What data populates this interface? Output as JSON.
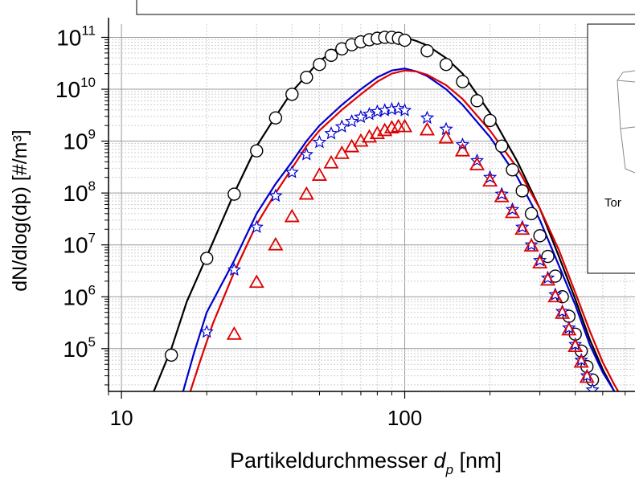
{
  "chart_data": {
    "type": "line",
    "xlabel_main": "Partikeldurchmesser ",
    "xlabel_var": "d",
    "xlabel_sub": "p",
    "xlabel_unit": " [nm]",
    "ylabel": "dN/dlog(dp) [#/m³]",
    "x_scale": "log",
    "y_scale": "log",
    "xlim": [
      9,
      650
    ],
    "ylim": [
      15000,
      180000000000
    ],
    "grid": true,
    "x_ticks": [
      {
        "value": 10,
        "label": "10"
      },
      {
        "value": 100,
        "label": "100"
      }
    ],
    "y_ticks": [
      {
        "value": 100000,
        "base": "10",
        "exp": "5"
      },
      {
        "value": 1000000,
        "base": "10",
        "exp": "6"
      },
      {
        "value": 10000000,
        "base": "10",
        "exp": "7"
      },
      {
        "value": 100000000,
        "base": "10",
        "exp": "8"
      },
      {
        "value": 1000000000,
        "base": "10",
        "exp": "9"
      },
      {
        "value": 10000000000,
        "base": "10",
        "exp": "10"
      },
      {
        "value": 100000000000,
        "base": "10",
        "exp": "11"
      }
    ],
    "inset_text": "Tor",
    "curves": [
      {
        "color": "#000000",
        "x": [
          13,
          15,
          17,
          20,
          25,
          30,
          35,
          40,
          50,
          60,
          70,
          80,
          90,
          100,
          110,
          120,
          140,
          160,
          200,
          250,
          300,
          350,
          400,
          450,
          500,
          540,
          570
        ],
        "y": [
          15000,
          100000,
          800000,
          6000000,
          100000000,
          800000000,
          3000000000,
          9000000000,
          35000000000,
          70000000000,
          95000000000,
          105000000000,
          108000000000,
          100000000000,
          85000000000,
          70000000000,
          40000000000,
          20000000000,
          3500000000,
          400000000,
          50000000,
          6000000,
          900000,
          150000,
          40000,
          18000,
          10000
        ]
      },
      {
        "color": "#0000cc",
        "x": [
          16.5,
          18,
          20,
          25,
          30,
          35,
          40,
          45,
          50,
          60,
          70,
          80,
          90,
          100,
          110,
          120,
          140,
          160,
          200,
          250,
          300,
          350,
          400,
          450,
          500,
          550,
          590
        ],
        "y": [
          15000,
          80000,
          500000,
          5000000,
          40000000,
          150000000,
          400000000,
          1000000000,
          2000000000,
          5000000000,
          10000000000,
          17000000000,
          23000000000,
          25000000000,
          22000000000,
          18000000000,
          10000000000,
          5000000000,
          1200000000,
          200000000,
          30000000,
          4000000,
          700000,
          120000,
          35000,
          15000,
          8000
        ]
      },
      {
        "color": "#dd0000",
        "x": [
          17.5,
          19,
          21,
          25,
          30,
          35,
          40,
          45,
          50,
          60,
          70,
          80,
          90,
          100,
          110,
          120,
          140,
          160,
          200,
          250,
          300,
          350,
          400,
          450,
          500,
          550,
          600
        ],
        "y": [
          15000,
          60000,
          300000,
          3000000,
          25000000,
          100000000,
          300000000,
          800000000,
          1600000000,
          4000000000,
          8000000000,
          14000000000,
          20000000000,
          23000000000,
          22000000000,
          19000000000,
          12000000000,
          6500000000,
          1600000000,
          300000000,
          50000000,
          8000000,
          1200000,
          220000,
          55000,
          20000,
          9000
        ]
      }
    ],
    "markers": [
      {
        "shape": "circle",
        "color": "#000000",
        "points": [
          [
            15,
            75000
          ],
          [
            20,
            5500000
          ],
          [
            25,
            95000000
          ],
          [
            30,
            650000000
          ],
          [
            35,
            2800000000
          ],
          [
            40,
            8000000000
          ],
          [
            45,
            17000000000
          ],
          [
            50,
            30000000000
          ],
          [
            55,
            45000000000
          ],
          [
            60,
            60000000000
          ],
          [
            65,
            72000000000
          ],
          [
            70,
            82000000000
          ],
          [
            75,
            90000000000
          ],
          [
            80,
            96000000000
          ],
          [
            85,
            100000000000
          ],
          [
            90,
            100000000000
          ],
          [
            95,
            96000000000
          ],
          [
            100,
            88000000000
          ],
          [
            120,
            55000000000
          ],
          [
            140,
            30000000000
          ],
          [
            160,
            14000000000
          ],
          [
            180,
            6000000000
          ],
          [
            200,
            2500000000
          ],
          [
            220,
            800000000
          ],
          [
            240,
            280000000
          ],
          [
            260,
            110000000
          ],
          [
            280,
            40000000
          ],
          [
            300,
            15000000
          ],
          [
            320,
            6000000
          ],
          [
            340,
            2500000
          ],
          [
            360,
            1000000
          ],
          [
            380,
            420000
          ],
          [
            400,
            190000
          ],
          [
            420,
            90000
          ],
          [
            440,
            45000
          ],
          [
            460,
            25000
          ]
        ]
      },
      {
        "shape": "star",
        "color": "#0000cc",
        "points": [
          [
            20,
            210000
          ],
          [
            25,
            3300000
          ],
          [
            30,
            22000000
          ],
          [
            35,
            88000000
          ],
          [
            40,
            250000000
          ],
          [
            45,
            550000000
          ],
          [
            50,
            950000000
          ],
          [
            55,
            1400000000
          ],
          [
            60,
            1900000000
          ],
          [
            65,
            2400000000
          ],
          [
            70,
            2900000000
          ],
          [
            75,
            3300000000
          ],
          [
            80,
            3700000000
          ],
          [
            85,
            3900000000
          ],
          [
            90,
            4100000000
          ],
          [
            95,
            4200000000
          ],
          [
            100,
            3900000000
          ],
          [
            120,
            2800000000
          ],
          [
            140,
            1700000000
          ],
          [
            160,
            850000000
          ],
          [
            180,
            420000000
          ],
          [
            200,
            200000000
          ],
          [
            220,
            95000000
          ],
          [
            240,
            48000000
          ],
          [
            260,
            22000000
          ],
          [
            280,
            10000000
          ],
          [
            300,
            5000000
          ],
          [
            320,
            2300000
          ],
          [
            340,
            1100000
          ],
          [
            360,
            520000
          ],
          [
            380,
            250000
          ],
          [
            400,
            120000
          ],
          [
            420,
            60000
          ],
          [
            440,
            30000
          ],
          [
            460,
            16000
          ]
        ]
      },
      {
        "shape": "triangle",
        "color": "#dd0000",
        "points": [
          [
            25,
            190000
          ],
          [
            30,
            1900000
          ],
          [
            35,
            10000000
          ],
          [
            40,
            35000000
          ],
          [
            45,
            95000000
          ],
          [
            50,
            220000000
          ],
          [
            55,
            380000000
          ],
          [
            60,
            580000000
          ],
          [
            65,
            780000000
          ],
          [
            70,
            1000000000
          ],
          [
            75,
            1200000000
          ],
          [
            80,
            1400000000
          ],
          [
            85,
            1600000000
          ],
          [
            90,
            1800000000
          ],
          [
            95,
            1900000000
          ],
          [
            100,
            1900000000
          ],
          [
            120,
            1650000000
          ],
          [
            140,
            1150000000
          ],
          [
            160,
            650000000
          ],
          [
            180,
            350000000
          ],
          [
            200,
            170000000
          ],
          [
            220,
            85000000
          ],
          [
            240,
            42000000
          ],
          [
            260,
            20000000
          ],
          [
            280,
            9500000
          ],
          [
            300,
            4500000
          ],
          [
            320,
            2100000
          ],
          [
            340,
            1000000
          ],
          [
            360,
            480000
          ],
          [
            380,
            230000
          ],
          [
            400,
            110000
          ],
          [
            420,
            55000
          ],
          [
            440,
            28000
          ]
        ]
      }
    ]
  }
}
